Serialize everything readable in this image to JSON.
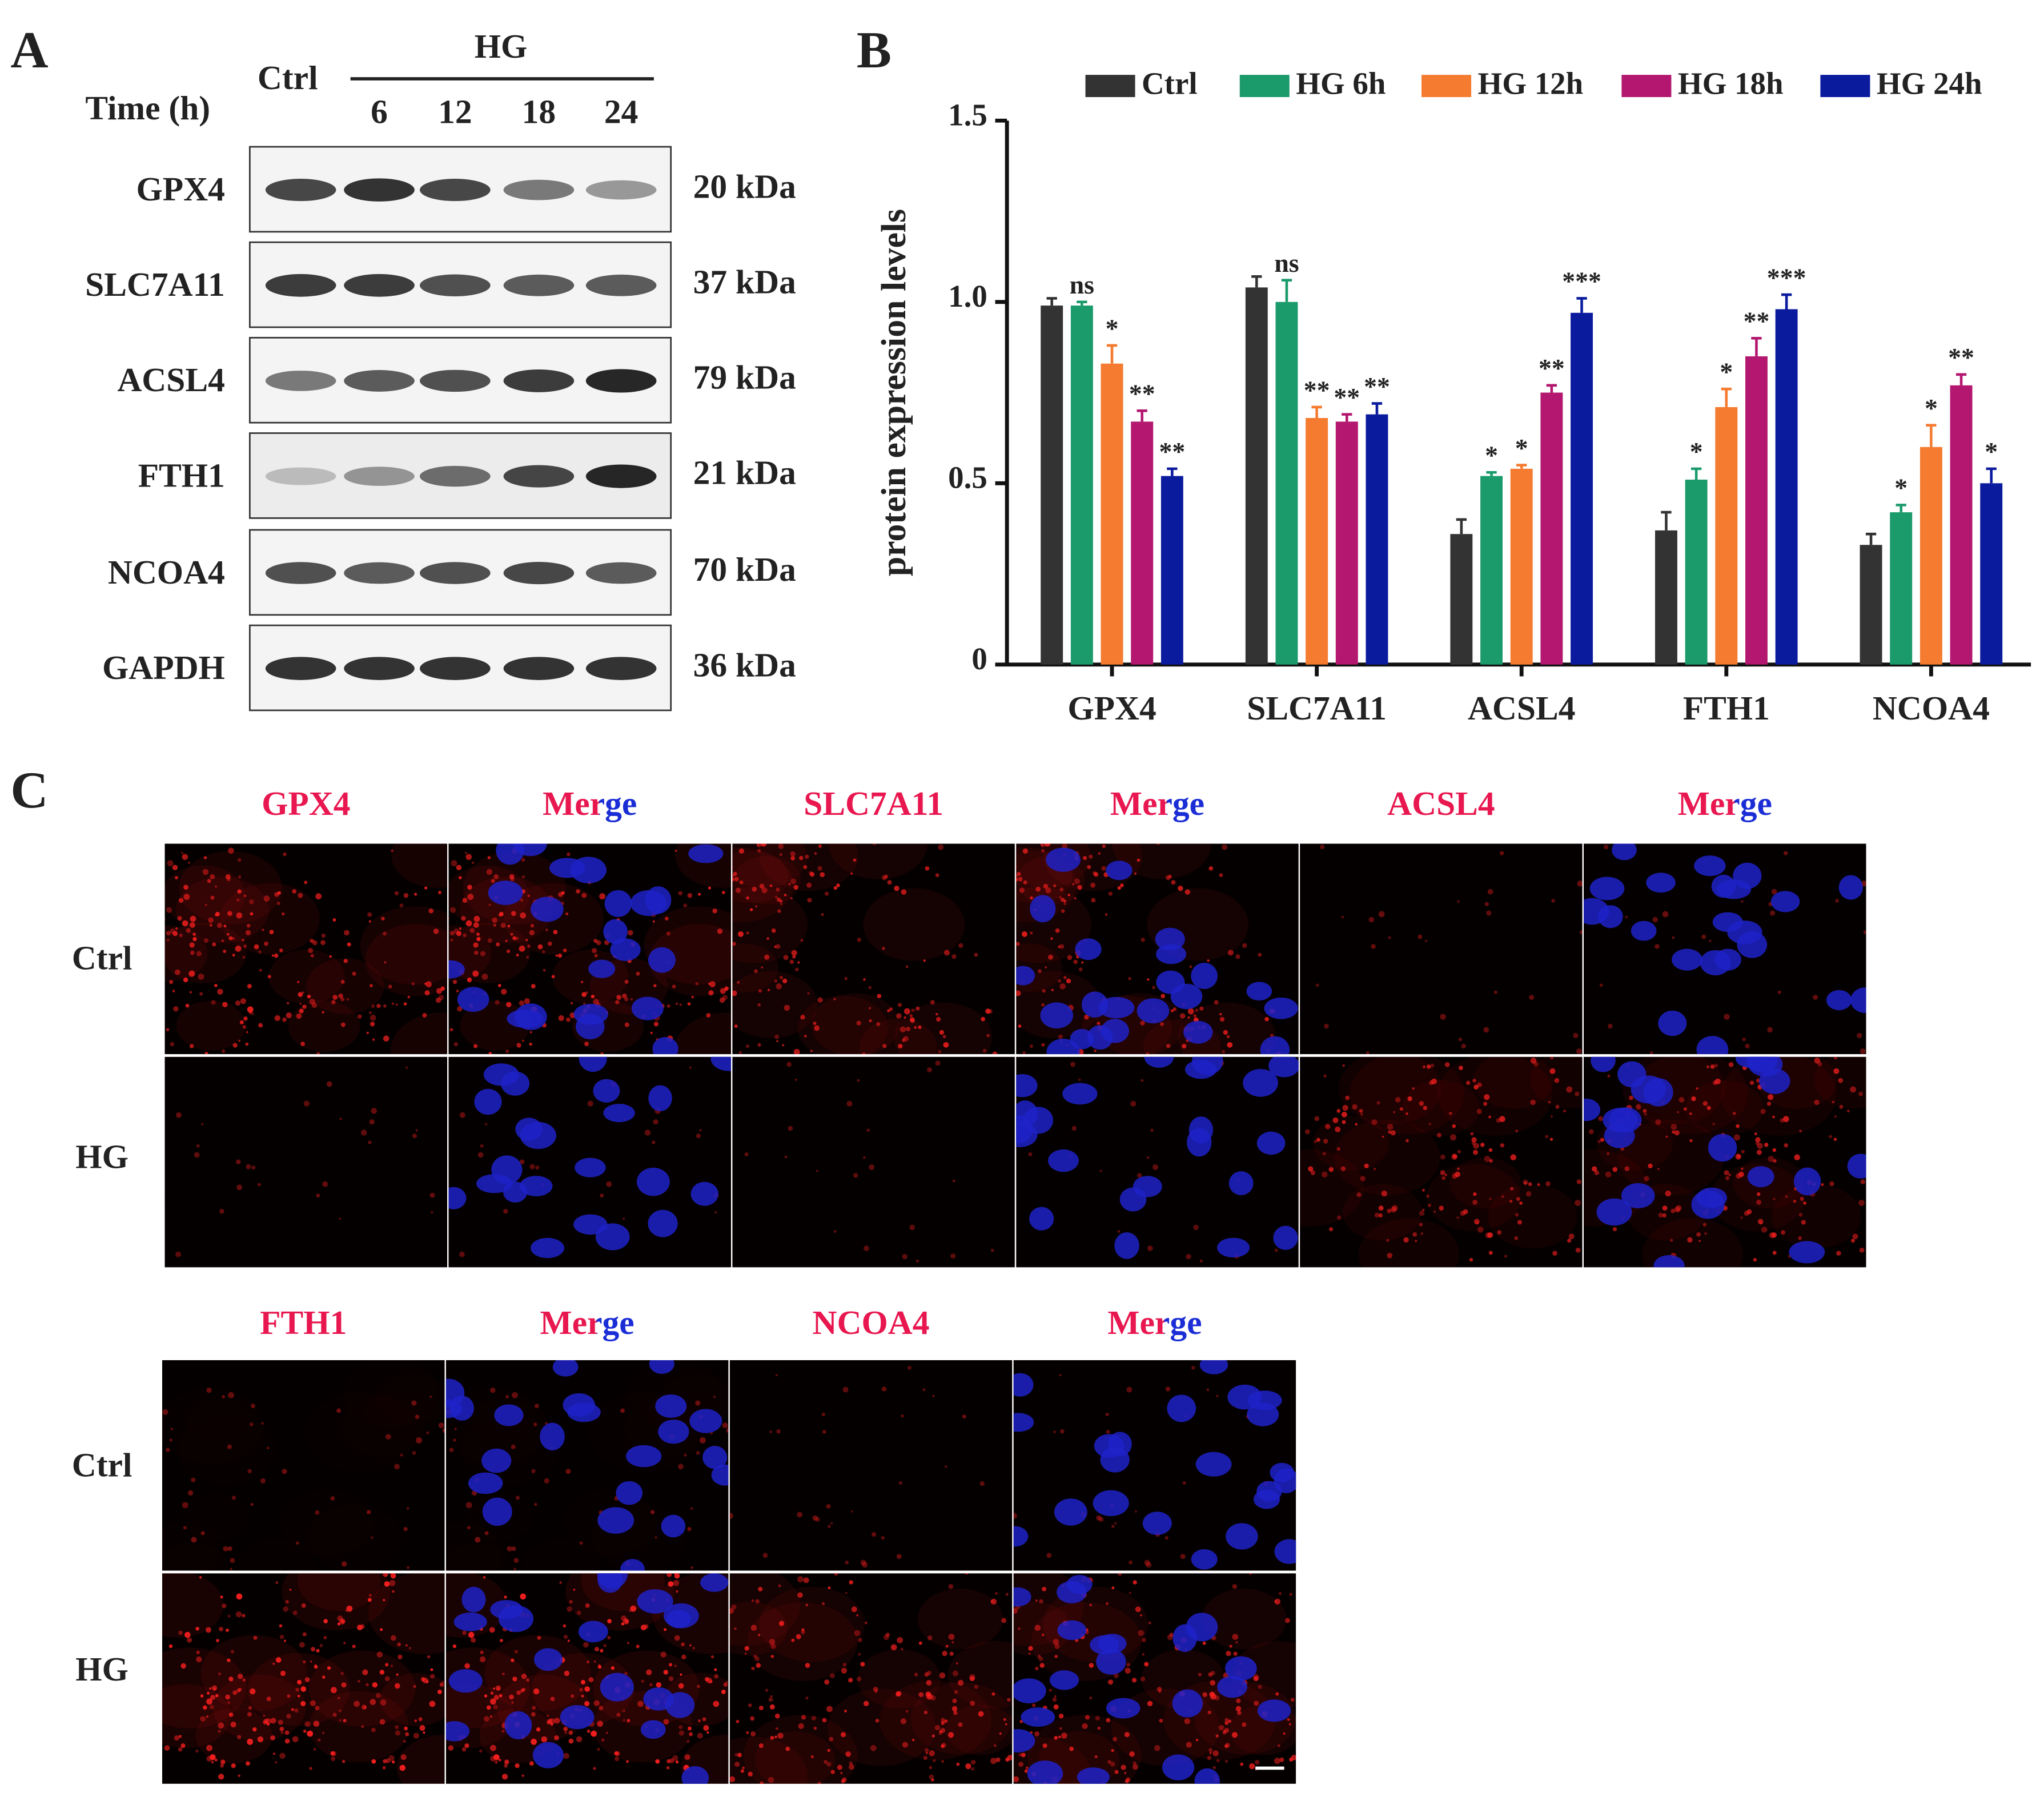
{
  "panel_labels": [
    "A",
    "B",
    "C"
  ],
  "western_blot": {
    "header": {
      "control": "Ctrl",
      "treatment": "HG",
      "time_label": "Time (h)",
      "times": [
        "6",
        "12",
        "18",
        "24"
      ]
    },
    "rows": [
      {
        "protein": "GPX4",
        "size": "20 kDa"
      },
      {
        "protein": "SLC7A11",
        "size": "37 kDa"
      },
      {
        "protein": "ACSL4",
        "size": "79 kDa"
      },
      {
        "protein": "FTH1",
        "size": "21 kDa"
      },
      {
        "protein": "NCOA4",
        "size": "70 kDa"
      },
      {
        "protein": "GAPDH",
        "size": "36 kDa"
      }
    ]
  },
  "chart_data": {
    "type": "bar",
    "y_label": "protein expression levels",
    "categories": [
      "GPX4",
      "SLC7A11",
      "ACSL4",
      "FTH1",
      "NCOA4"
    ],
    "ylim": [
      0,
      1.5
    ],
    "yticks": [
      0,
      0.5,
      {
        "value": 1,
        "label": "1.0"
      },
      1.5
    ],
    "legend_position": "top",
    "series": [
      {
        "name": "Ctrl",
        "color": "#333333",
        "values": [
          0.99,
          1.04,
          0.36,
          0.37,
          0.33
        ],
        "errors": [
          0.02,
          0.03,
          0.04,
          0.05,
          0.03
        ]
      },
      {
        "name": "HG 6h",
        "color": "#1b9a6b",
        "values": [
          0.99,
          1.0,
          0.52,
          0.51,
          0.42
        ],
        "errors": [
          0.01,
          0.06,
          0.01,
          0.03,
          0.02
        ],
        "annotations": [
          "ns",
          "ns",
          "*",
          "*",
          "*"
        ]
      },
      {
        "name": "HG 12h",
        "color": "#f47b30",
        "values": [
          0.83,
          0.68,
          0.54,
          0.71,
          0.6
        ],
        "errors": [
          0.05,
          0.03,
          0.01,
          0.05,
          0.06
        ],
        "annotations": [
          "*",
          "**",
          "*",
          "*",
          "*"
        ]
      },
      {
        "name": "HG 18h",
        "color": "#b3176f",
        "values": [
          0.67,
          0.67,
          0.75,
          0.85,
          0.77
        ],
        "errors": [
          0.03,
          0.02,
          0.02,
          0.05,
          0.03
        ],
        "annotations": [
          "**",
          "**",
          "**",
          "**",
          "**"
        ]
      },
      {
        "name": "HG 24h",
        "color": "#0b1b9e",
        "values": [
          0.52,
          0.69,
          0.97,
          0.98,
          0.5
        ],
        "errors": [
          0.02,
          0.03,
          0.04,
          0.04,
          0.04
        ],
        "annotations": [
          "**",
          "**",
          "***",
          "***",
          "*"
        ]
      }
    ]
  },
  "microscopy": {
    "blocks": [
      {
        "columns": [
          "GPX4",
          "Merge",
          "SLC7A11",
          "Merge",
          "ACSL4",
          "Merge"
        ],
        "rows": [
          "Ctrl",
          "HG"
        ]
      },
      {
        "columns": [
          "FTH1",
          "Merge",
          "NCOA4",
          "Merge"
        ],
        "rows": [
          "Ctrl",
          "HG"
        ]
      }
    ]
  }
}
